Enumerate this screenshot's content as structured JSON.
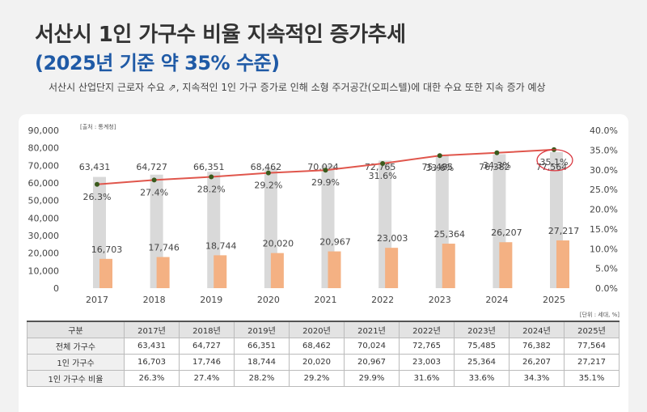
{
  "title_line1": "서산시 1인 가구수 비율 지속적인 증가추세",
  "title_line2": "(2025년 기준 약 35% 수준)",
  "subtitle": "서산시 산업단지 근로자 수요 ⇗, 지속적인 1인 가구 증가로 인해 소형 주거공간(오피스텔)에 대한 수요 또한 지속 증가 예상",
  "source_note": "[출처 : 통계청]",
  "unit_note": "[단위 : 세대, %]",
  "colors": {
    "total_bar": "#d9d9d9",
    "single_bar": "#f4b183",
    "ratio_line": "#e0564c",
    "ratio_marker": "#3a5a1c",
    "highlight_circle": "#d9363e",
    "title_accent": "#1f5aa6"
  },
  "chart_data": {
    "type": "bar",
    "categories": [
      "2017",
      "2018",
      "2019",
      "2020",
      "2021",
      "2022",
      "2023",
      "2024",
      "2025"
    ],
    "series": [
      {
        "values": [
          63431,
          64727,
          66351,
          68462,
          70024,
          72765,
          75485,
          76382,
          77564
        ],
        "axis": "left"
      },
      {
        "values": [
          16703,
          17746,
          18744,
          20020,
          20967,
          23003,
          25364,
          26207,
          27217
        ],
        "axis": "left"
      },
      {
        "type": "line",
        "values": [
          26.3,
          27.4,
          28.2,
          29.2,
          29.9,
          31.6,
          33.6,
          34.3,
          35.1
        ],
        "axis": "right"
      }
    ],
    "y_left": {
      "ylim": [
        0,
        90000
      ],
      "ticks": [
        "90,000",
        "80,000",
        "70,000",
        "60,000",
        "50,000",
        "40,000",
        "30,000",
        "20,000",
        "10,000",
        "0"
      ]
    },
    "y_right": {
      "ylim": [
        0,
        40
      ],
      "ticks": [
        "40.0%",
        "35.0%",
        "30.0%",
        "25.0%",
        "20.0%",
        "15.0%",
        "10.0%",
        "5.0%",
        "0.0%"
      ]
    },
    "total_labels": [
      "63,431",
      "64,727",
      "66,351",
      "68,462",
      "70,024",
      "72,765",
      "75,485",
      "76,382",
      "77,564"
    ],
    "single_labels": [
      "16,703",
      "17,746",
      "18,744",
      "20,020",
      "20,967",
      "23,003",
      "25,364",
      "26,207",
      "27,217"
    ],
    "ratio_labels": [
      "26.3%",
      "27.4%",
      "28.2%",
      "29.2%",
      "29.9%",
      "31.6%",
      "33.6%",
      "34.3%",
      "35.1%"
    ],
    "highlight_index": 8,
    "legend": "none",
    "grid": false
  },
  "table": {
    "headers": [
      "구분",
      "2017년",
      "2018년",
      "2019년",
      "2020년",
      "2021년",
      "2022년",
      "2023년",
      "2024년",
      "2025년"
    ],
    "rows": [
      [
        "전체 가구수",
        "63,431",
        "64,727",
        "66,351",
        "68,462",
        "70,024",
        "72,765",
        "75,485",
        "76,382",
        "77,564"
      ],
      [
        "1인 가구수",
        "16,703",
        "17,746",
        "18,744",
        "20,020",
        "20,967",
        "23,003",
        "25,364",
        "26,207",
        "27,217"
      ],
      [
        "1인 가구수 비율",
        "26.3%",
        "27.4%",
        "28.2%",
        "29.2%",
        "29.9%",
        "31.6%",
        "33.6%",
        "34.3%",
        "35.1%"
      ]
    ]
  }
}
